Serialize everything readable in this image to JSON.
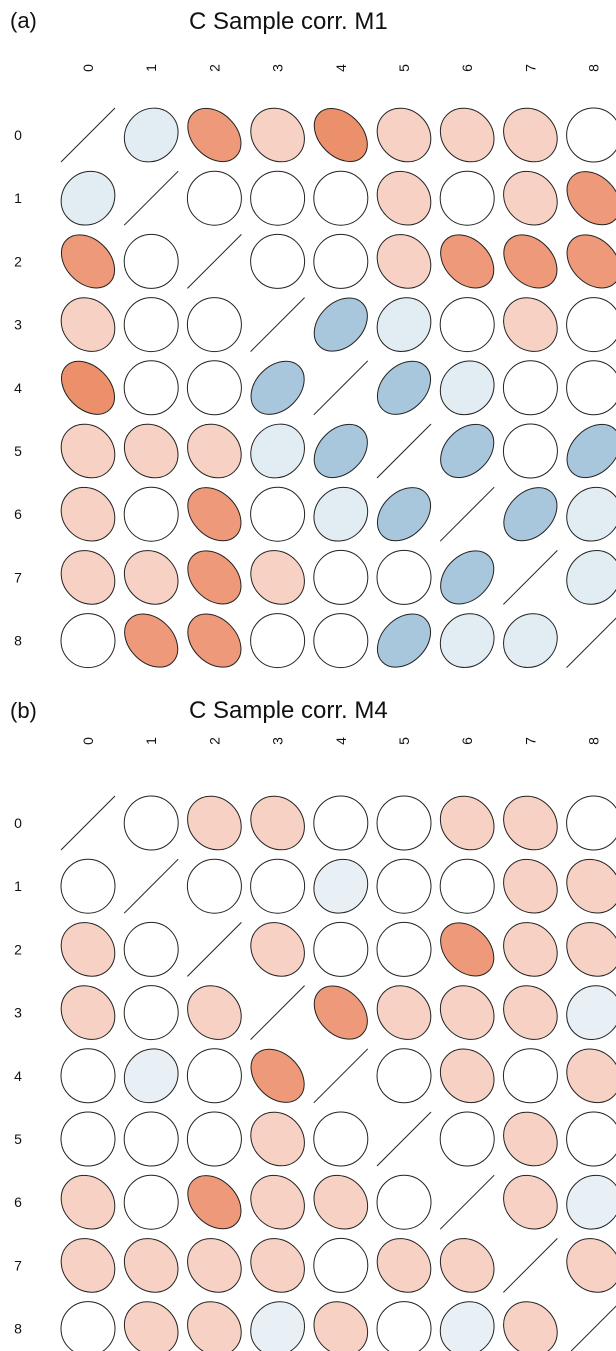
{
  "chart_data": [
    {
      "panel_label": "(a)",
      "type": "heatmap",
      "subtype": "correlation ellipse plot",
      "title": "C Sample corr. M1",
      "labels": [
        "0",
        "1",
        "2",
        "3",
        "4",
        "5",
        "6",
        "7",
        "8"
      ],
      "matrix": [
        [
          1.0,
          -0.15,
          0.45,
          0.2,
          0.5,
          0.2,
          0.2,
          0.2,
          0.0
        ],
        [
          -0.15,
          1.0,
          0.0,
          0.0,
          0.0,
          0.2,
          0.0,
          0.2,
          0.45
        ],
        [
          0.45,
          0.0,
          1.0,
          0.0,
          0.0,
          0.2,
          0.45,
          0.45,
          0.45
        ],
        [
          0.2,
          0.0,
          0.0,
          1.0,
          -0.45,
          -0.15,
          0.0,
          0.2,
          0.0
        ],
        [
          0.5,
          0.0,
          0.0,
          -0.45,
          1.0,
          -0.45,
          -0.15,
          0.0,
          0.0
        ],
        [
          0.2,
          0.2,
          0.2,
          -0.15,
          -0.45,
          1.0,
          -0.45,
          0.0,
          -0.45
        ],
        [
          0.2,
          0.0,
          0.45,
          0.0,
          -0.15,
          -0.45,
          1.0,
          -0.45,
          -0.15
        ],
        [
          0.2,
          0.2,
          0.45,
          0.2,
          0.0,
          0.0,
          -0.45,
          1.0,
          -0.15
        ],
        [
          0.0,
          0.45,
          0.45,
          0.0,
          0.0,
          -0.45,
          -0.15,
          -0.15,
          1.0
        ]
      ],
      "colors": {
        "positive": "#ec8f6b",
        "negative": "#9ec0d8",
        "zero": "#ffffff",
        "outline": "#222222"
      }
    },
    {
      "panel_label": "(b)",
      "type": "heatmap",
      "subtype": "correlation ellipse plot",
      "title": "C Sample corr. M4",
      "labels": [
        "0",
        "1",
        "2",
        "3",
        "4",
        "5",
        "6",
        "7",
        "8"
      ],
      "matrix": [
        [
          1.0,
          0.0,
          0.2,
          0.2,
          0.0,
          0.0,
          0.2,
          0.2,
          0.0
        ],
        [
          0.0,
          1.0,
          0.0,
          0.0,
          -0.12,
          0.0,
          0.0,
          0.2,
          0.2
        ],
        [
          0.2,
          0.0,
          1.0,
          0.2,
          0.0,
          0.0,
          0.45,
          0.2,
          0.2
        ],
        [
          0.2,
          0.0,
          0.2,
          1.0,
          0.45,
          0.2,
          0.2,
          0.2,
          -0.12
        ],
        [
          0.0,
          -0.12,
          0.0,
          0.45,
          1.0,
          0.0,
          0.2,
          0.0,
          0.2
        ],
        [
          0.0,
          0.0,
          0.0,
          0.2,
          0.0,
          1.0,
          0.0,
          0.2,
          0.0
        ],
        [
          0.2,
          0.0,
          0.45,
          0.2,
          0.2,
          0.0,
          1.0,
          0.2,
          -0.12
        ],
        [
          0.2,
          0.2,
          0.2,
          0.2,
          0.0,
          0.2,
          0.2,
          1.0,
          0.2
        ],
        [
          0.0,
          0.2,
          0.2,
          -0.12,
          0.2,
          0.0,
          -0.12,
          0.2,
          1.0
        ]
      ],
      "colors": {
        "positive": "#ec8f6b",
        "negative": "#9ec0d8",
        "zero": "#ffffff",
        "outline": "#222222"
      }
    }
  ]
}
